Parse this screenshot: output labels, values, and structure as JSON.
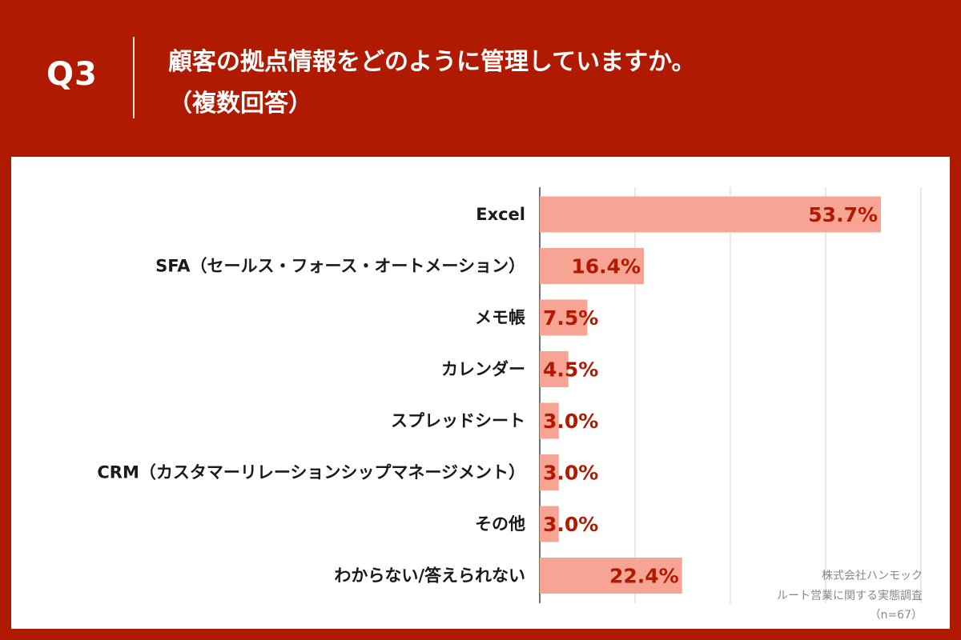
{
  "header": {
    "question_no": "Q3",
    "title_line1": "顧客の拠点情報をどのように管理していますか。",
    "title_line2": "（複数回答）"
  },
  "chart_data": {
    "type": "bar",
    "orientation": "horizontal",
    "categories": [
      "Excel",
      "SFA（セールス・フォース・オートメーション）",
      "メモ帳",
      "カレンダー",
      "スプレッドシート",
      "CRM（カスタマーリレーションシップマネージメント）",
      "その他",
      "わからない/答えられない"
    ],
    "values": [
      53.7,
      16.4,
      7.5,
      4.5,
      3.0,
      3.0,
      3.0,
      22.4
    ],
    "value_labels": [
      "53.7%",
      "16.4%",
      "7.5%",
      "4.5%",
      "3.0%",
      "3.0%",
      "3.0%",
      "22.4%"
    ],
    "xlim": [
      0,
      60
    ],
    "gridlines": [
      0,
      15,
      30,
      45,
      60
    ],
    "bar_color": "#f7a494",
    "label_color": "#b01a00"
  },
  "source": {
    "company": "株式会社ハンモック",
    "survey": "ルート営業に関する実態調査",
    "sample": "（n=67）"
  },
  "colors": {
    "background": "#b01a00",
    "panel": "#ffffff",
    "grid": "#d0d0d0",
    "axis": "#444444"
  }
}
